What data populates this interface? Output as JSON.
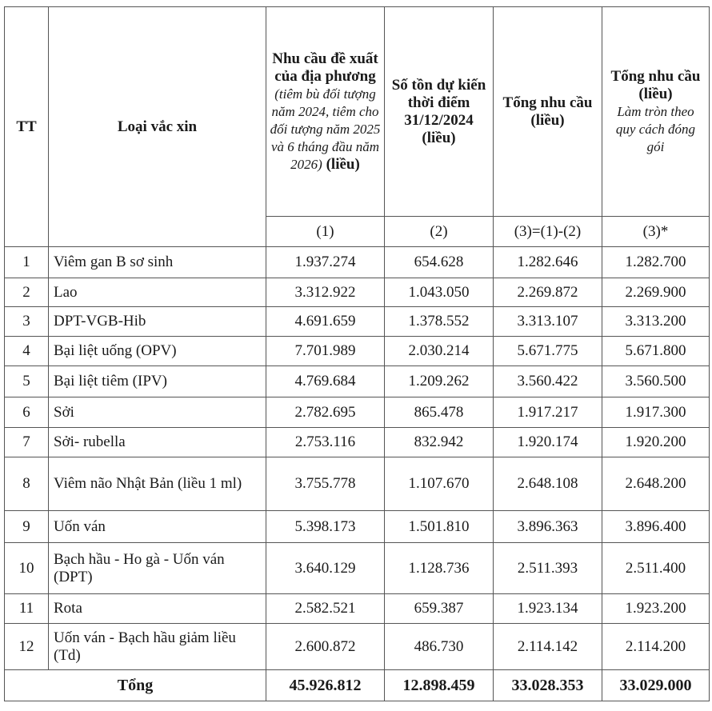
{
  "headers": {
    "tt": "TT",
    "vaccine": "Loại vắc xin",
    "col1_bold": "Nhu cầu đề xuất của địa phương",
    "col1_italic": "(tiêm bù đối tượng năm 2024, tiêm cho đối tượng năm 2025 và 6 tháng đầu năm 2026)",
    "col1_unit": "(liều)",
    "col2": "Số tồn dự kiến thời điểm 31/12/2024 (liều)",
    "col3": "Tổng nhu cầu (liều)",
    "col4_bold": "Tổng nhu cầu (liều)",
    "col4_italic": "Làm tròn theo quy cách đóng gói"
  },
  "subheaders": [
    "(1)",
    "(2)",
    "(3)=(1)-(2)",
    "(3)*"
  ],
  "rows": [
    {
      "tt": "1",
      "name": "Viêm gan B sơ sinh",
      "c1": "1.937.274",
      "c2": "654.628",
      "c3": "1.282.646",
      "c4": "1.282.700"
    },
    {
      "tt": "2",
      "name": "Lao",
      "c1": "3.312.922",
      "c2": "1.043.050",
      "c3": "2.269.872",
      "c4": "2.269.900"
    },
    {
      "tt": "3",
      "name": "DPT-VGB-Hib",
      "c1": "4.691.659",
      "c2": "1.378.552",
      "c3": "3.313.107",
      "c4": "3.313.200"
    },
    {
      "tt": "4",
      "name": "Bại liệt uống (OPV)",
      "c1": "7.701.989",
      "c2": "2.030.214",
      "c3": "5.671.775",
      "c4": "5.671.800"
    },
    {
      "tt": "5",
      "name": "Bại liệt tiêm (IPV)",
      "c1": "4.769.684",
      "c2": "1.209.262",
      "c3": "3.560.422",
      "c4": "3.560.500"
    },
    {
      "tt": "6",
      "name": "Sởi",
      "c1": "2.782.695",
      "c2": "865.478",
      "c3": "1.917.217",
      "c4": "1.917.300"
    },
    {
      "tt": "7",
      "name": "Sởi- rubella",
      "c1": "2.753.116",
      "c2": "832.942",
      "c3": "1.920.174",
      "c4": "1.920.200"
    },
    {
      "tt": "8",
      "name": "Viêm não Nhật Bản (liều 1 ml)",
      "c1": "3.755.778",
      "c2": "1.107.670",
      "c3": "2.648.108",
      "c4": "2.648.200"
    },
    {
      "tt": "9",
      "name": "Uốn ván",
      "c1": "5.398.173",
      "c2": "1.501.810",
      "c3": "3.896.363",
      "c4": "3.896.400"
    },
    {
      "tt": "10",
      "name": "Bạch hầu - Ho gà - Uốn ván (DPT)",
      "c1": "3.640.129",
      "c2": "1.128.736",
      "c3": "2.511.393",
      "c4": "2.511.400"
    },
    {
      "tt": "11",
      "name": "Rota",
      "c1": "2.582.521",
      "c2": "659.387",
      "c3": "1.923.134",
      "c4": "1.923.200"
    },
    {
      "tt": "12",
      "name": "Uốn ván - Bạch hầu giảm liều (Td)",
      "c1": "2.600.872",
      "c2": "486.730",
      "c3": "2.114.142",
      "c4": "2.114.200"
    }
  ],
  "total": {
    "label": "Tổng",
    "c1": "45.926.812",
    "c2": "12.898.459",
    "c3": "33.028.353",
    "c4": "33.029.000"
  }
}
